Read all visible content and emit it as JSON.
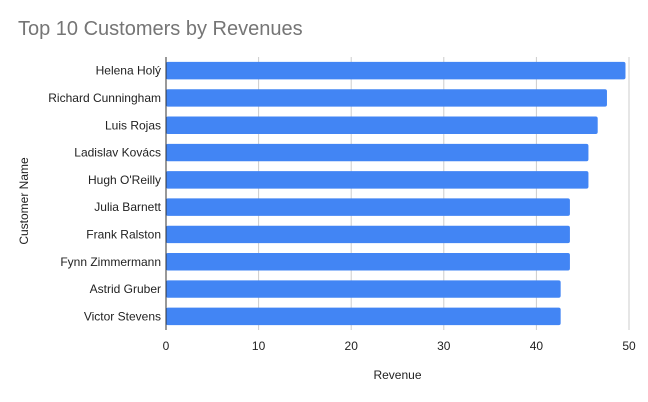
{
  "chart_data": {
    "type": "bar",
    "orientation": "horizontal",
    "title": "Top 10 Customers by Revenues",
    "xlabel": "Revenue",
    "ylabel": "Customer Name",
    "categories": [
      "Helena Holý",
      "Richard Cunningham",
      "Luis Rojas",
      "Ladislav Kovács",
      "Hugh O'Reilly",
      "Julia Barnett",
      "Frank Ralston",
      "Fynn Zimmermann",
      "Astrid Gruber",
      "Victor Stevens"
    ],
    "values": [
      49.62,
      47.62,
      46.62,
      45.62,
      45.62,
      43.62,
      43.62,
      43.62,
      42.62,
      42.62
    ],
    "xlim": [
      0,
      50
    ],
    "xticks": [
      "0",
      "10",
      "20",
      "30",
      "40",
      "50"
    ],
    "grid": true,
    "legend": "none",
    "bar_color": "#4285f4"
  }
}
